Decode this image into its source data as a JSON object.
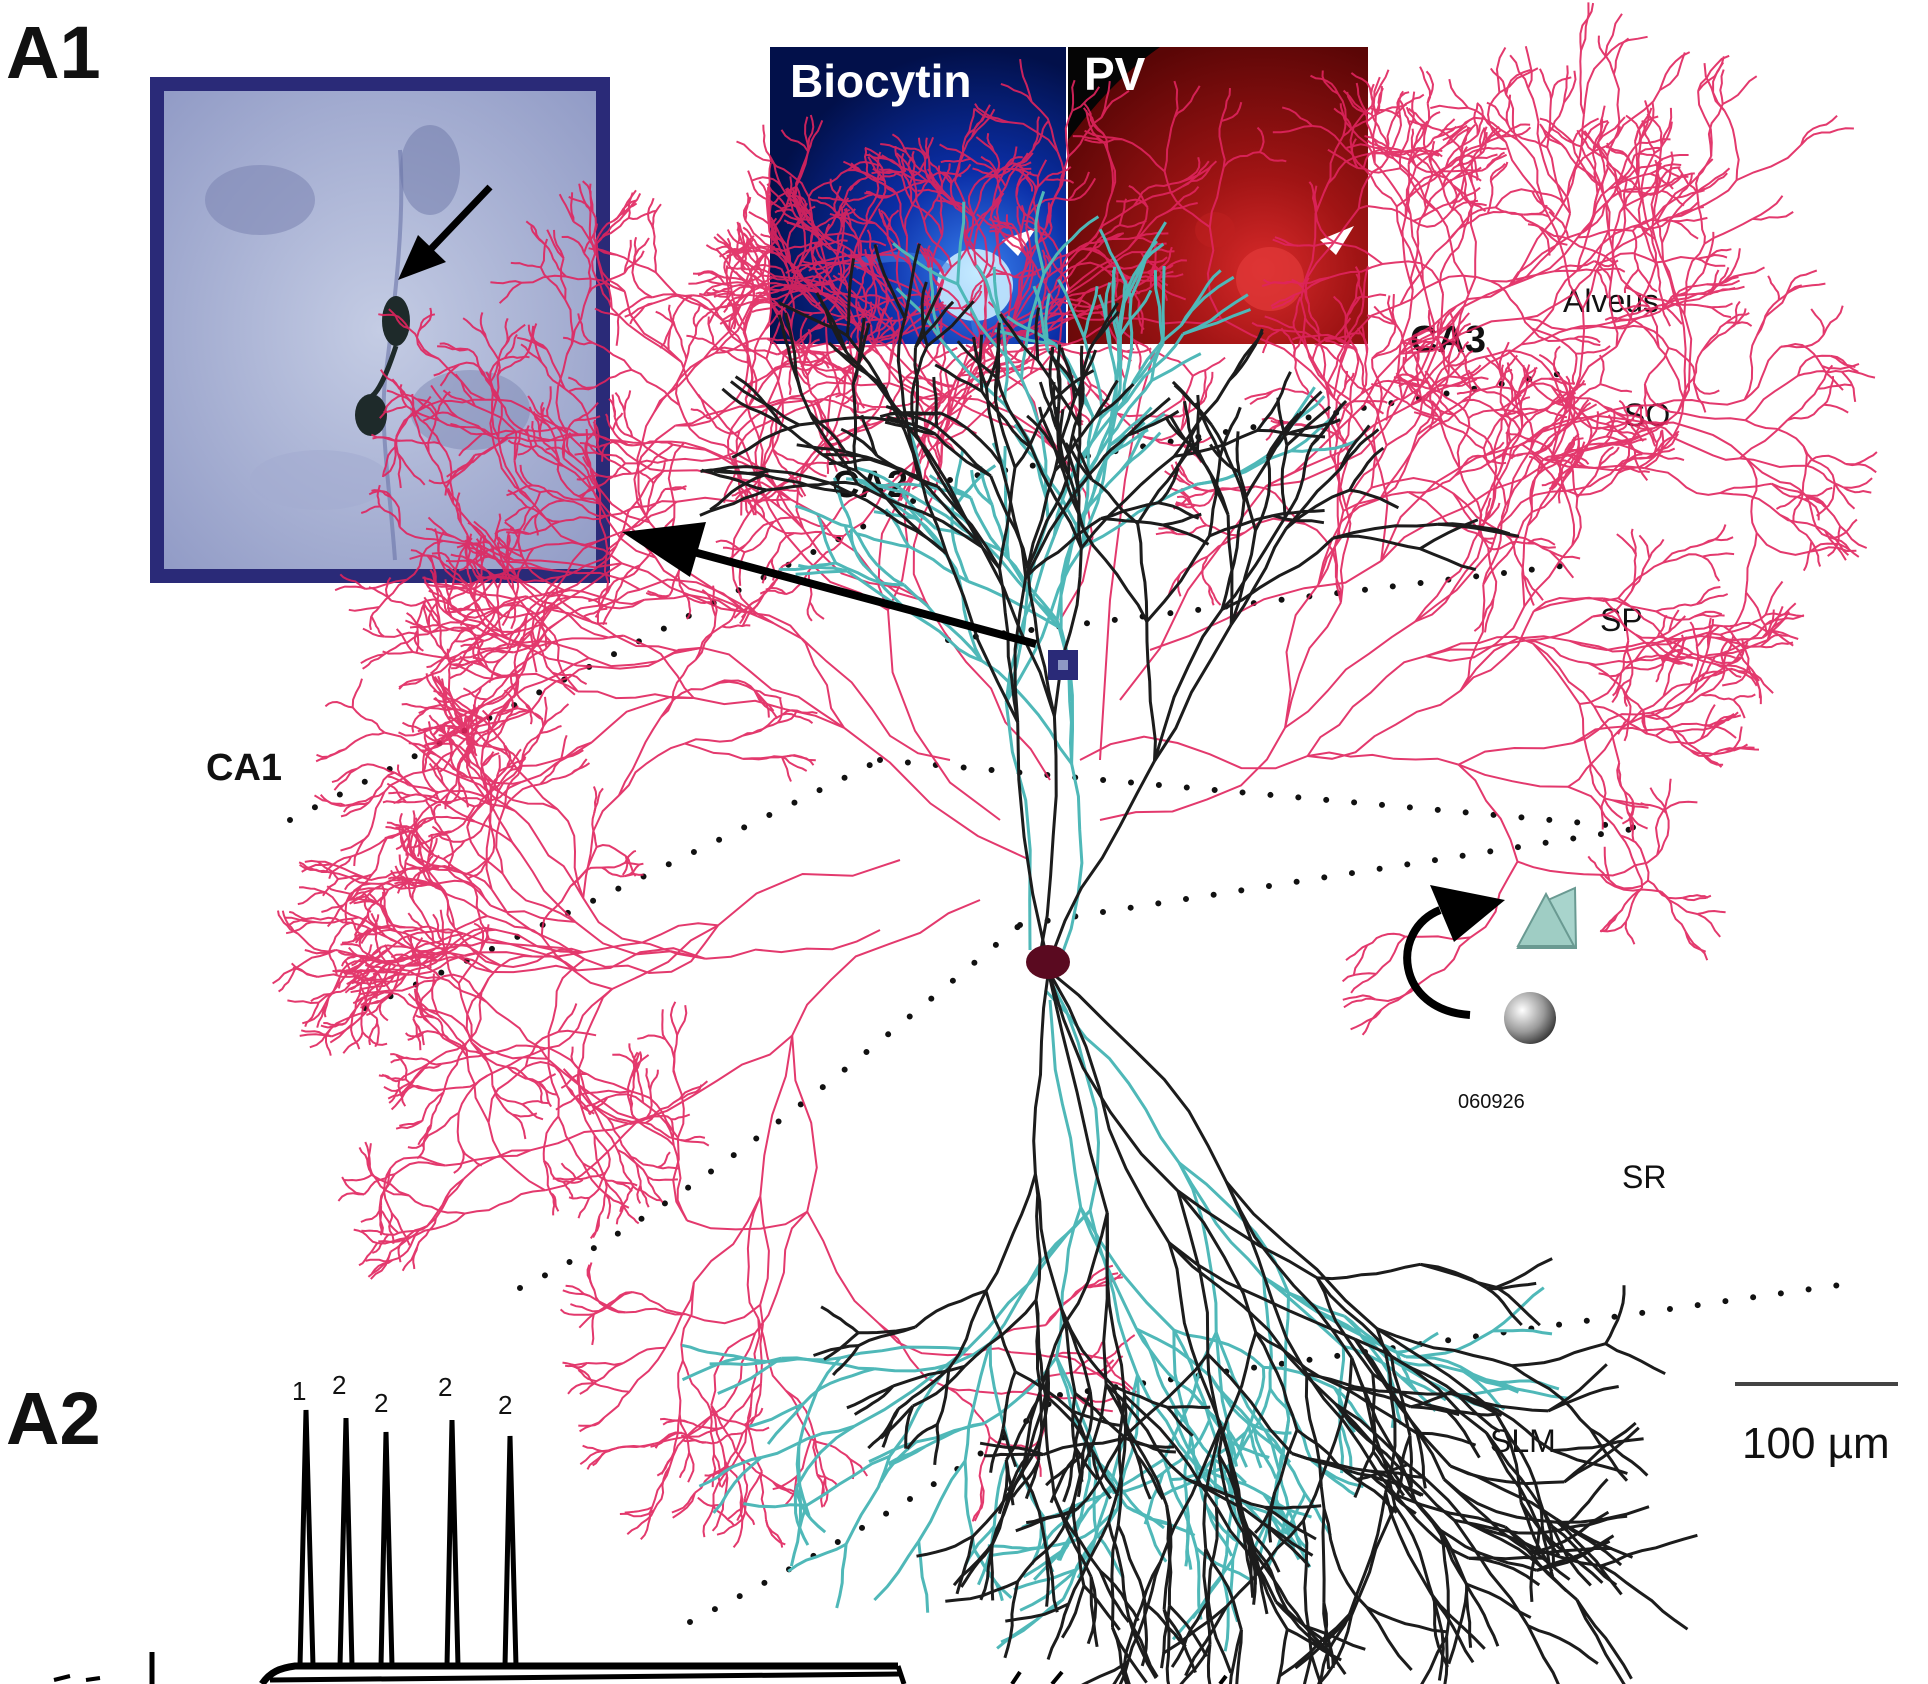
{
  "panels": {
    "a1": "A1",
    "a2": "A2"
  },
  "micrographs": {
    "biocytin": "Biocytin",
    "pv": "PV"
  },
  "regions": {
    "ca1": "CA1",
    "ca2": "CA2",
    "ca3": "CA3"
  },
  "layers": {
    "alveus": "Alveus",
    "so": "SO",
    "sp": "SP",
    "sr": "SR",
    "slm": "SLM"
  },
  "cell_id": "060926",
  "scale_bar": "100 µm",
  "spike_labels": [
    "1",
    "2",
    "2",
    "2",
    "2"
  ],
  "colors": {
    "axon": "#e0245e",
    "dendrite": "#1c1c1c",
    "dendrite_alt": "#4fb8b8",
    "frame": "#2a2a78"
  }
}
